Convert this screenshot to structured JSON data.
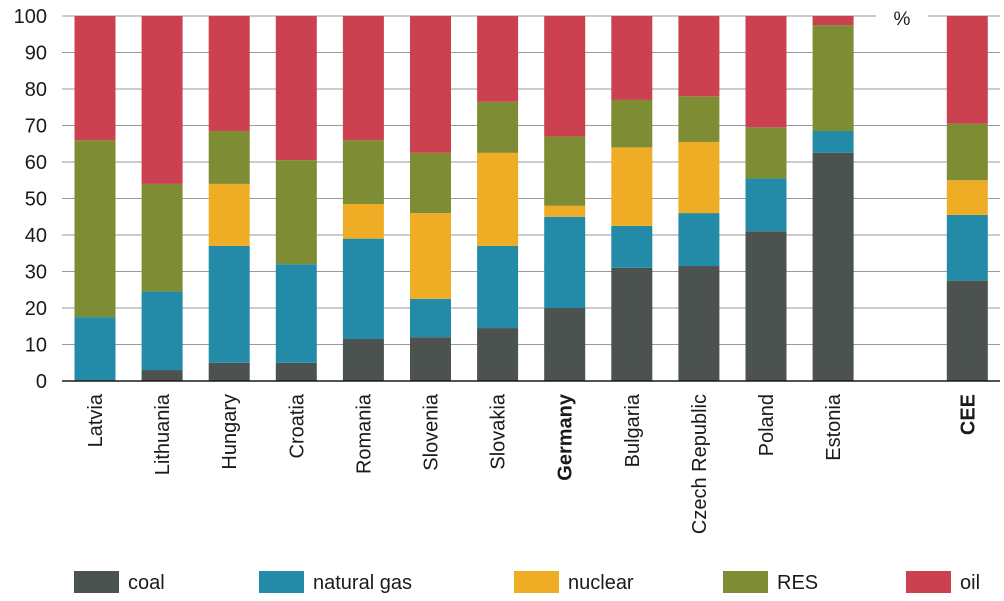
{
  "chart_data": {
    "type": "bar",
    "stacked": true,
    "unit": "%",
    "ylim": [
      0,
      100
    ],
    "yticks": [
      0,
      10,
      20,
      30,
      40,
      50,
      60,
      70,
      80,
      90,
      100
    ],
    "grid": "horizontal",
    "legend_position": "bottom",
    "categories": [
      "Latvia",
      "Lithuania",
      "Hungary",
      "Croatia",
      "Romania",
      "Slovenia",
      "Slovakia",
      "Germany",
      "Bulgaria",
      "Czech Republic",
      "Poland",
      "Estonia",
      "",
      "CEE"
    ],
    "bold_categories": [
      "Germany",
      "CEE"
    ],
    "series": [
      {
        "name": "coal",
        "color": "#4b5250",
        "values": [
          0,
          3,
          5,
          5,
          11.5,
          12,
          14.5,
          20,
          31,
          31.5,
          41,
          62.5,
          null,
          27.5
        ]
      },
      {
        "name": "natural gas",
        "color": "#238ba8",
        "values": [
          17.5,
          21.5,
          32,
          27,
          27.5,
          10.5,
          22.5,
          25,
          11.5,
          14.5,
          14.5,
          6,
          null,
          18
        ]
      },
      {
        "name": "nuclear",
        "color": "#efad26",
        "values": [
          0,
          0,
          17,
          0,
          9.5,
          23.5,
          25.5,
          3,
          21.5,
          19.5,
          0,
          0,
          null,
          9.5
        ]
      },
      {
        "name": "RES",
        "color": "#7e8c33",
        "values": [
          48.5,
          29.5,
          14.5,
          28.5,
          17.5,
          16.5,
          14,
          19,
          13,
          12.5,
          14,
          29,
          null,
          15.5
        ]
      },
      {
        "name": "oil",
        "color": "#cc4150",
        "values": [
          34,
          46,
          31.5,
          39.5,
          34,
          37.5,
          23.5,
          33,
          23,
          22,
          30.5,
          2.5,
          null,
          29.5
        ]
      }
    ]
  }
}
